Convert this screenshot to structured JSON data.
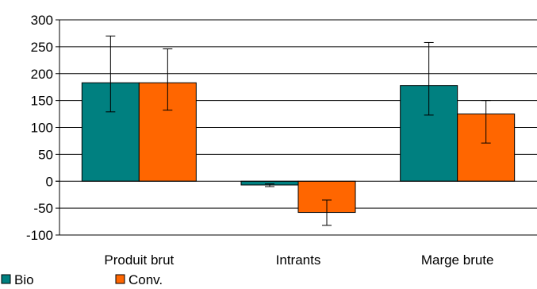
{
  "chart_data": {
    "type": "bar",
    "categories": [
      "Produit brut",
      "Intrants",
      "Marge brute"
    ],
    "series": [
      {
        "name": "Bio",
        "color": "#008080",
        "values": [
          183,
          -7,
          178
        ],
        "error_low": [
          129,
          -10,
          123
        ],
        "error_high": [
          270,
          -5,
          258
        ]
      },
      {
        "name": "Conv.",
        "color": "#FF6600",
        "values": [
          183,
          -58,
          125
        ],
        "error_low": [
          132,
          -82,
          71
        ],
        "error_high": [
          246,
          -35,
          150
        ]
      }
    ],
    "title": "",
    "xlabel": "",
    "ylabel": "",
    "ylim": [
      -100,
      300
    ],
    "yticks": [
      -100,
      -50,
      0,
      50,
      100,
      150,
      200,
      250,
      300
    ],
    "ytick_labels": [
      "-100",
      "-50",
      "0",
      "50",
      "100",
      "150",
      "200",
      "250",
      "300"
    ],
    "grid": true,
    "legend_position": "bottom-left"
  }
}
